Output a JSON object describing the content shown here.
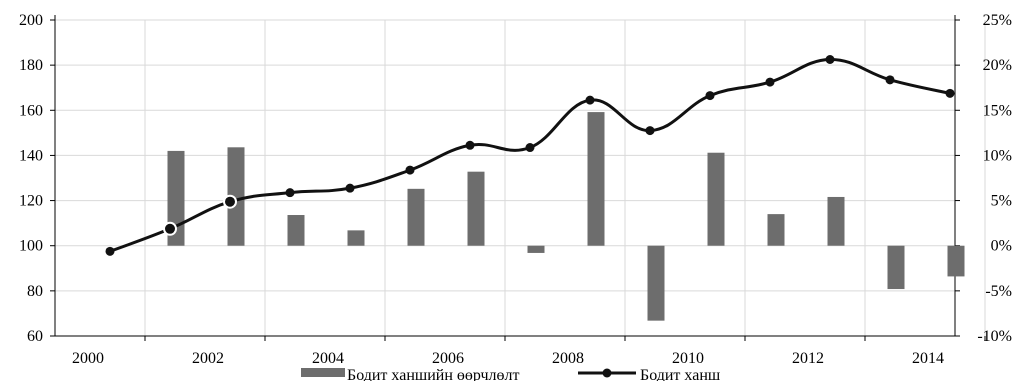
{
  "chart_data": {
    "type": "bar+line",
    "title": "",
    "x_ticks": [
      "2000",
      "2002",
      "2004",
      "2006",
      "2008",
      "2010",
      "2012",
      "2014"
    ],
    "categories": [
      "2000",
      "2001",
      "2002",
      "2003",
      "2004",
      "2005",
      "2006",
      "2007",
      "2008",
      "2009",
      "2010",
      "2011",
      "2012",
      "2013",
      "2014"
    ],
    "left_axis": {
      "ylim": [
        60,
        200
      ],
      "ticks": [
        "60",
        "80",
        "100",
        "120",
        "140",
        "160",
        "180",
        "200"
      ]
    },
    "right_axis": {
      "ylim": [
        -10,
        25
      ],
      "ticks": [
        "-10%",
        "-5%",
        "0%",
        "5%",
        "10%",
        "15%",
        "20%",
        "25%"
      ]
    },
    "grid": true,
    "legend_position": "bottom",
    "series": [
      {
        "name": "Бодит ханшийн өөрчлөлт",
        "type": "bar",
        "axis": "right",
        "unit": "%",
        "color": "#6d6d6d",
        "points": [
          {
            "x": "2001",
            "value": 10.5
          },
          {
            "x": "2002",
            "value": 10.9
          },
          {
            "x": "2003",
            "value": 3.4
          },
          {
            "x": "2004",
            "value": 1.7
          },
          {
            "x": "2005",
            "value": 6.3
          },
          {
            "x": "2006",
            "value": 8.2
          },
          {
            "x": "2007",
            "value": -0.8
          },
          {
            "x": "2008",
            "value": 14.8
          },
          {
            "x": "2009",
            "value": -8.3
          },
          {
            "x": "2010",
            "value": 10.3
          },
          {
            "x": "2011",
            "value": 3.5
          },
          {
            "x": "2012",
            "value": 5.4
          },
          {
            "x": "2013",
            "value": -4.8
          },
          {
            "x": "2014",
            "value": -3.4
          }
        ]
      },
      {
        "name": "Бодит ханш",
        "type": "line",
        "axis": "left",
        "color": "#111111",
        "points": [
          {
            "x": "2000",
            "value": 97.5
          },
          {
            "x": "2001",
            "value": 107.5
          },
          {
            "x": "2002",
            "value": 119.5
          },
          {
            "x": "2003",
            "value": 123.5
          },
          {
            "x": "2004",
            "value": 125.5
          },
          {
            "x": "2005",
            "value": 133.5
          },
          {
            "x": "2006",
            "value": 144.5
          },
          {
            "x": "2007",
            "value": 143.5
          },
          {
            "x": "2008",
            "value": 164.5
          },
          {
            "x": "2009",
            "value": 151.0
          },
          {
            "x": "2010",
            "value": 166.5
          },
          {
            "x": "2011",
            "value": 172.5
          },
          {
            "x": "2012",
            "value": 182.5
          },
          {
            "x": "2013",
            "value": 173.5
          },
          {
            "x": "2014",
            "value": 167.5
          }
        ]
      }
    ],
    "highlighted_points": [
      "2001",
      "2002"
    ]
  }
}
